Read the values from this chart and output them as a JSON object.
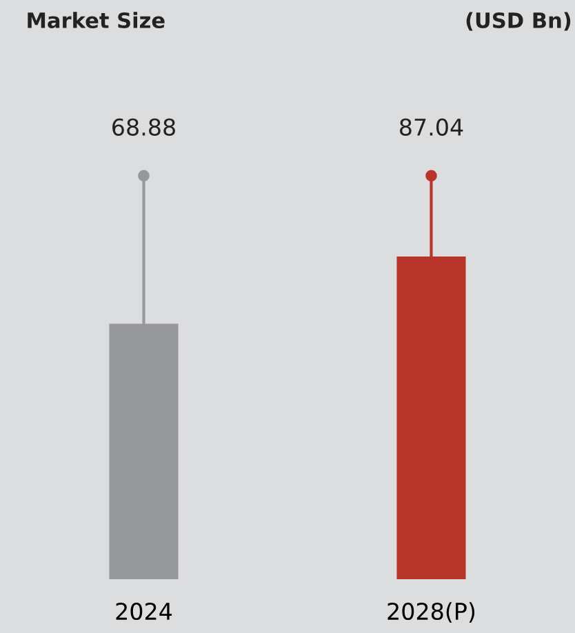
{
  "chart_data": {
    "type": "bar",
    "title": "Market Size",
    "annotations": [
      "(USD Bn)"
    ],
    "categories": [
      "2024",
      "2028(P)"
    ],
    "values": [
      68.88,
      87.04
    ],
    "colors": [
      "#97989a",
      "#b8352c"
    ],
    "data_labels": true,
    "grid": false,
    "legend": false
  }
}
